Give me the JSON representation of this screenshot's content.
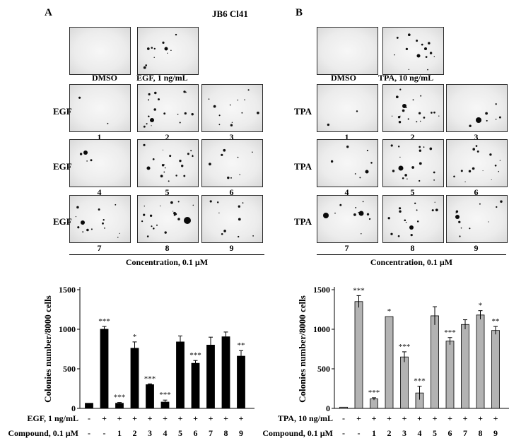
{
  "panel_a": {
    "letter": "A",
    "cell_line": "JB6 Cl41",
    "control_label": "DMSO",
    "stim_label": "EGF, 1 ng/mL",
    "row_label": "EGF",
    "numbers": [
      "1",
      "2",
      "3",
      "4",
      "5",
      "6",
      "7",
      "8",
      "9"
    ],
    "concentration": "Concentration, 0.1 µM"
  },
  "panel_b": {
    "letter": "B",
    "control_label": "DMSO",
    "stim_label": "TPA, 10 ng/mL",
    "row_label": "TPA",
    "numbers": [
      "1",
      "2",
      "3",
      "4",
      "5",
      "6",
      "7",
      "8",
      "9"
    ],
    "concentration": "Concentration, 0.1 µM"
  },
  "chart_data": [
    {
      "type": "bar",
      "color": "#000000",
      "ylabel": "Colonies number/8000 cells",
      "ylim": [
        0,
        1500
      ],
      "yticks": [
        "0",
        "500",
        "1000",
        "1500"
      ],
      "row1_label": "EGF, 1 ng/mL",
      "row2_label": "Compound, 0.1 µM",
      "row1": [
        "-",
        "+",
        "+",
        "+",
        "+",
        "+",
        "+",
        "+",
        "+",
        "+",
        "+"
      ],
      "row2": [
        "-",
        "-",
        "1",
        "2",
        "3",
        "4",
        "5",
        "6",
        "7",
        "8",
        "9"
      ],
      "values": [
        65,
        1000,
        65,
        760,
        300,
        80,
        840,
        570,
        800,
        905,
        660
      ],
      "errors": [
        0,
        35,
        10,
        80,
        10,
        25,
        75,
        35,
        100,
        60,
        70
      ],
      "significance": [
        "",
        "***",
        "***",
        "*",
        "***",
        "***",
        "",
        "***",
        "",
        "",
        "**"
      ]
    },
    {
      "type": "bar",
      "color": "#b3b3b3",
      "ylabel": "Colonies number/8000 cells",
      "ylim": [
        0,
        1500
      ],
      "yticks": [
        "0",
        "500",
        "1000",
        "1500"
      ],
      "row1_label": "TPA, 10 ng/mL",
      "row2_label": "Compound, 0.1 µM",
      "row1": [
        "-",
        "+",
        "+",
        "+",
        "+",
        "+",
        "+",
        "+",
        "+",
        "+",
        "+"
      ],
      "row2": [
        "-",
        "-",
        "1",
        "2",
        "3",
        "4",
        "5",
        "6",
        "7",
        "8",
        "9"
      ],
      "values": [
        15,
        1350,
        120,
        1160,
        650,
        195,
        1170,
        850,
        1060,
        1180,
        985
      ],
      "errors": [
        0,
        75,
        15,
        0,
        65,
        85,
        115,
        45,
        60,
        55,
        50
      ],
      "significance": [
        "",
        "***",
        "***",
        "*",
        "***",
        "***",
        "",
        "***",
        "",
        "*",
        "**"
      ]
    }
  ]
}
